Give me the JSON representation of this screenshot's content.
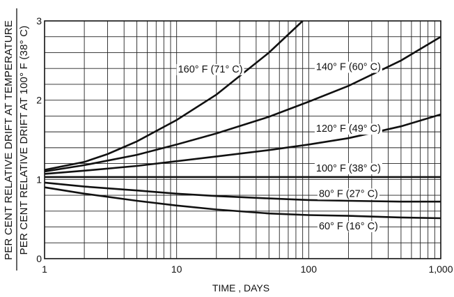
{
  "chart_data": {
    "type": "line",
    "title": "",
    "xlabel": "TIME , DAYS",
    "ylabel_top": "PER CENT RELATIVE DRIFT AT TEMPERATURE",
    "ylabel_bottom": "PER CENT RELATIVE DRIFT AT 100° F (38° C)",
    "x_scale": "log",
    "xlim": [
      1,
      1000
    ],
    "ylim": [
      0,
      3
    ],
    "x_ticks": [
      {
        "value": 1,
        "label": "1"
      },
      {
        "value": 10,
        "label": "10"
      },
      {
        "value": 100,
        "label": "100"
      },
      {
        "value": 1000,
        "label": "1,000"
      }
    ],
    "y_ticks": [
      {
        "value": 0,
        "label": "0"
      },
      {
        "value": 1,
        "label": "1"
      },
      {
        "value": 2,
        "label": "2"
      },
      {
        "value": 3,
        "label": "3"
      }
    ],
    "grid": true,
    "series": [
      {
        "name": "160° F (71° C)",
        "label_at": [
          18,
          2.35
        ],
        "x": [
          1,
          2,
          3,
          5,
          10,
          20,
          50,
          90
        ],
        "y": [
          1.12,
          1.22,
          1.32,
          1.48,
          1.75,
          2.07,
          2.6,
          3.0
        ]
      },
      {
        "name": "140° F (60° C)",
        "label_at": [
          200,
          2.38
        ],
        "x": [
          1,
          2,
          5,
          10,
          20,
          50,
          100,
          200,
          500,
          1000
        ],
        "y": [
          1.1,
          1.18,
          1.31,
          1.44,
          1.58,
          1.79,
          1.98,
          2.18,
          2.5,
          2.8
        ]
      },
      {
        "name": "120° F (49° C)",
        "label_at": [
          200,
          1.6
        ],
        "x": [
          1,
          2,
          5,
          10,
          20,
          50,
          100,
          200,
          500,
          1000
        ],
        "y": [
          1.07,
          1.11,
          1.17,
          1.23,
          1.29,
          1.37,
          1.44,
          1.52,
          1.67,
          1.82
        ]
      },
      {
        "name": "100° F (38° C)",
        "label_at": [
          200,
          1.1
        ],
        "x": [
          1,
          1000
        ],
        "y": [
          1.03,
          1.03
        ]
      },
      {
        "name": "80° F (27° C)",
        "label_at": [
          200,
          0.78
        ],
        "x": [
          1,
          2,
          5,
          10,
          20,
          50,
          100,
          200,
          500,
          1000
        ],
        "y": [
          0.96,
          0.91,
          0.86,
          0.82,
          0.79,
          0.76,
          0.74,
          0.73,
          0.72,
          0.72
        ]
      },
      {
        "name": "60° F (16° C)",
        "label_at": [
          200,
          0.37
        ],
        "x": [
          1,
          2,
          5,
          10,
          20,
          50,
          100,
          200,
          500,
          1000
        ],
        "y": [
          0.9,
          0.82,
          0.73,
          0.67,
          0.62,
          0.57,
          0.55,
          0.54,
          0.52,
          0.51
        ]
      }
    ]
  }
}
